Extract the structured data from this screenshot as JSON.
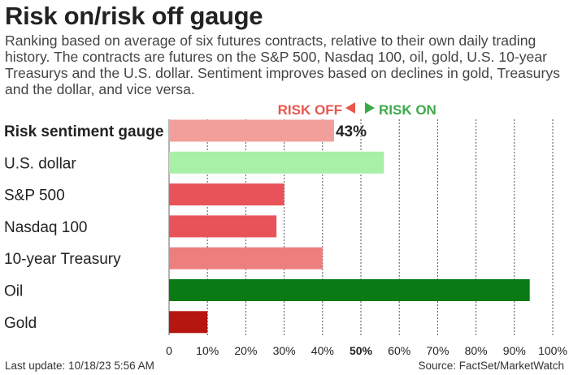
{
  "title": "Risk on/risk off gauge",
  "subtitle": "Ranking based on average of six futures contracts, relative to their own daily trading history. The contracts are futures on the S&P 500, Nasdaq 100, oil, gold, U.S. 10-year Treasurys and the U.S. dollar. Sentiment improves based on declines in gold, Treasurys and the dollar, and vice versa.",
  "legend": {
    "risk_off": "RISK OFF",
    "risk_on": "RISK ON",
    "risk_off_color": "#e8564d",
    "risk_on_color": "#3daa4a"
  },
  "footer": {
    "last_update": "Last update: 10/18/23 5:56 AM",
    "source": "Source: FactSet/MarketWatch"
  },
  "chart_data": {
    "type": "bar",
    "orientation": "horizontal",
    "categories": [
      "Risk sentiment gauge",
      "U.S. dollar",
      "S&P 500",
      "Nasdaq 100",
      "10-year Treasury",
      "Oil",
      "Gold"
    ],
    "values": [
      43,
      56,
      30,
      28,
      40,
      94,
      10
    ],
    "colors": [
      "#f29f9b",
      "#a8f0a7",
      "#e8535a",
      "#e8535a",
      "#ec7f7d",
      "#0a7a14",
      "#b5160f"
    ],
    "value_labels": [
      "43%",
      "",
      "",
      "",
      "",
      "",
      ""
    ],
    "bold_categories": [
      "Risk sentiment gauge"
    ],
    "xlim": [
      0,
      100
    ],
    "xticks": [
      "0",
      "10%",
      "20%",
      "30%",
      "40%",
      "50%",
      "60%",
      "70%",
      "80%",
      "90%",
      "100%"
    ],
    "highlight_tick": "50%",
    "grid": "vertical dashed"
  }
}
